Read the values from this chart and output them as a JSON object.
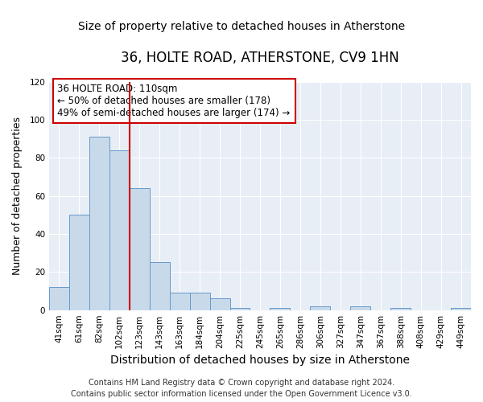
{
  "title": "36, HOLTE ROAD, ATHERSTONE, CV9 1HN",
  "subtitle": "Size of property relative to detached houses in Atherstone",
  "xlabel": "Distribution of detached houses by size in Atherstone",
  "ylabel": "Number of detached properties",
  "bar_labels": [
    "41sqm",
    "61sqm",
    "82sqm",
    "102sqm",
    "123sqm",
    "143sqm",
    "163sqm",
    "184sqm",
    "204sqm",
    "225sqm",
    "245sqm",
    "265sqm",
    "286sqm",
    "306sqm",
    "327sqm",
    "347sqm",
    "367sqm",
    "388sqm",
    "408sqm",
    "429sqm",
    "449sqm"
  ],
  "bar_values": [
    12,
    50,
    91,
    84,
    64,
    25,
    9,
    9,
    6,
    1,
    0,
    1,
    0,
    2,
    0,
    2,
    0,
    1,
    0,
    0,
    1
  ],
  "bar_color": "#c8daea",
  "bar_edge_color": "#6699cc",
  "vline_x": 3.5,
  "vline_color": "#cc0000",
  "annotation_box_title": "36 HOLTE ROAD: 110sqm",
  "annotation_line1": "← 50% of detached houses are smaller (178)",
  "annotation_line2": "49% of semi-detached houses are larger (174) →",
  "annotation_box_color": "#ffffff",
  "annotation_box_edge": "#cc0000",
  "ylim": [
    0,
    120
  ],
  "yticks": [
    0,
    20,
    40,
    60,
    80,
    100,
    120
  ],
  "footer_line1": "Contains HM Land Registry data © Crown copyright and database right 2024.",
  "footer_line2": "Contains public sector information licensed under the Open Government Licence v3.0.",
  "bg_color": "#ffffff",
  "plot_bg_color": "#e8eef5",
  "title_fontsize": 12,
  "subtitle_fontsize": 10,
  "xlabel_fontsize": 10,
  "ylabel_fontsize": 9,
  "tick_fontsize": 7.5,
  "footer_fontsize": 7
}
